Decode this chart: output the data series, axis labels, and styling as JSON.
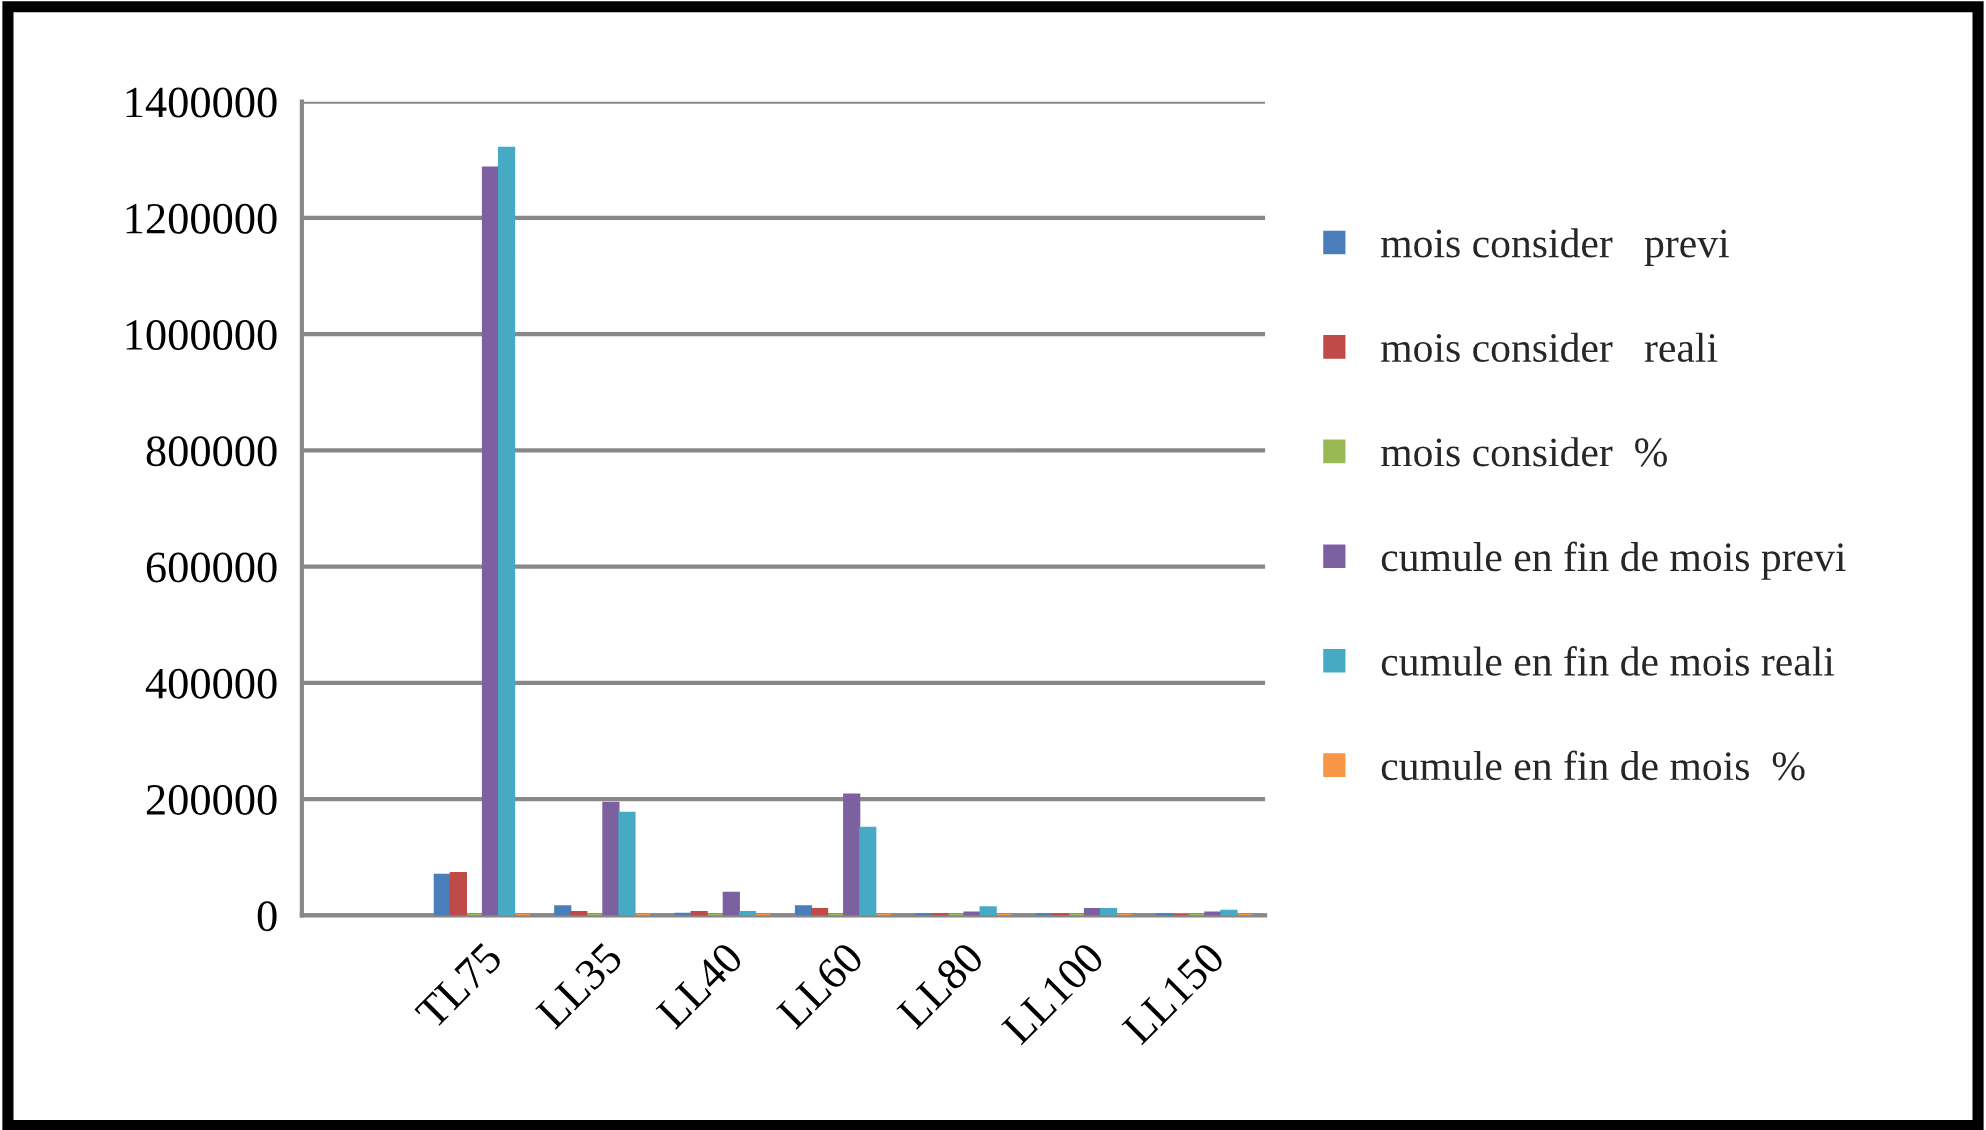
{
  "chart_data": {
    "type": "bar",
    "categories": [
      null,
      "TL75",
      "LL35",
      "LL40",
      "LL60",
      "LL80",
      "LL100",
      "LL150"
    ],
    "series": [
      {
        "name": "mois consider   previ",
        "color": "#4a7ebb",
        "values": [
          null,
          69000,
          15000,
          2000,
          15000,
          1000,
          1000,
          1000
        ]
      },
      {
        "name": "mois consider   reali",
        "color": "#be4b48",
        "values": [
          null,
          72000,
          5000,
          5000,
          10000,
          1000,
          1000,
          0
        ]
      },
      {
        "name": "mois consider  %",
        "color": "#98b954",
        "values": [
          null,
          0,
          0,
          0,
          0,
          0,
          0,
          0
        ]
      },
      {
        "name": "cumule en fin de mois previ",
        "color": "#7d60a0",
        "values": [
          null,
          1286000,
          193000,
          38000,
          207000,
          4000,
          10000,
          4000
        ]
      },
      {
        "name": "cumule en fin de mois reali",
        "color": "#46aac5",
        "values": [
          null,
          1320000,
          176000,
          5000,
          150000,
          13000,
          10000,
          7000
        ]
      },
      {
        "name": "cumule en fin de mois  %",
        "color": "#f79646",
        "values": [
          null,
          0,
          0,
          0,
          0,
          0,
          0,
          0
        ]
      }
    ],
    "ylim": [
      0,
      1400000
    ],
    "yticks": [
      0,
      200000,
      400000,
      600000,
      800000,
      1000000,
      1200000,
      1400000
    ],
    "grid": "y",
    "legend": "right"
  }
}
